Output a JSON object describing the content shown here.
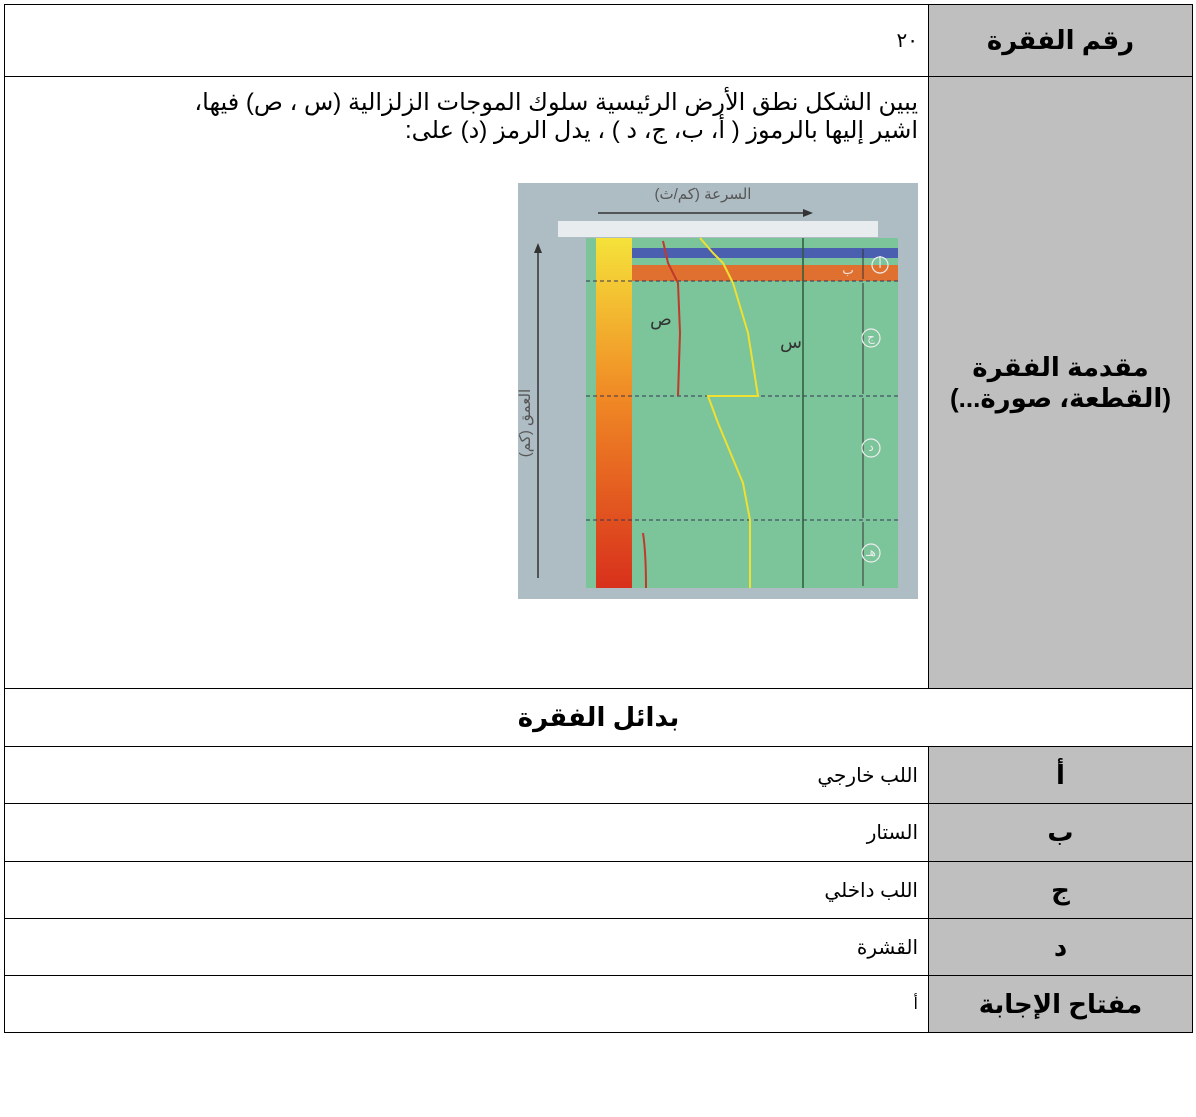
{
  "item_number": {
    "label": "رقم الفقرة",
    "value": "٢٠"
  },
  "intro": {
    "label_lines": [
      "مقدمة الفقرة",
      "(القطعة، صورة...)"
    ],
    "text_lines": [
      "يبين الشكل نطق الأرض الرئيسية سلوك الموجات الزلزالية (س ، ص) فيها،",
      "اشير إليها بالرموز   ( أ، ب، ج، د ) ، يدل الرمز  (د) على:"
    ],
    "figure": {
      "x_axis_label": "السرعة (كم/ث)",
      "y_axis_label": "العمق (كم)",
      "wave_labels": [
        "س",
        "ص"
      ],
      "zone_labels": [
        "أ",
        "ب",
        "ج",
        "د",
        "هـ"
      ]
    }
  },
  "alternatives_title": "بدائل الفقرة",
  "options": [
    {
      "letter": "أ",
      "text": "اللب خارجي"
    },
    {
      "letter": "ب",
      "text": "الستار"
    },
    {
      "letter": "ج",
      "text": "اللب داخلي"
    },
    {
      "letter": "د",
      "text": "القشرة"
    }
  ],
  "answer_key": {
    "label": "مفتاح الإجابة",
    "value": "أ"
  }
}
